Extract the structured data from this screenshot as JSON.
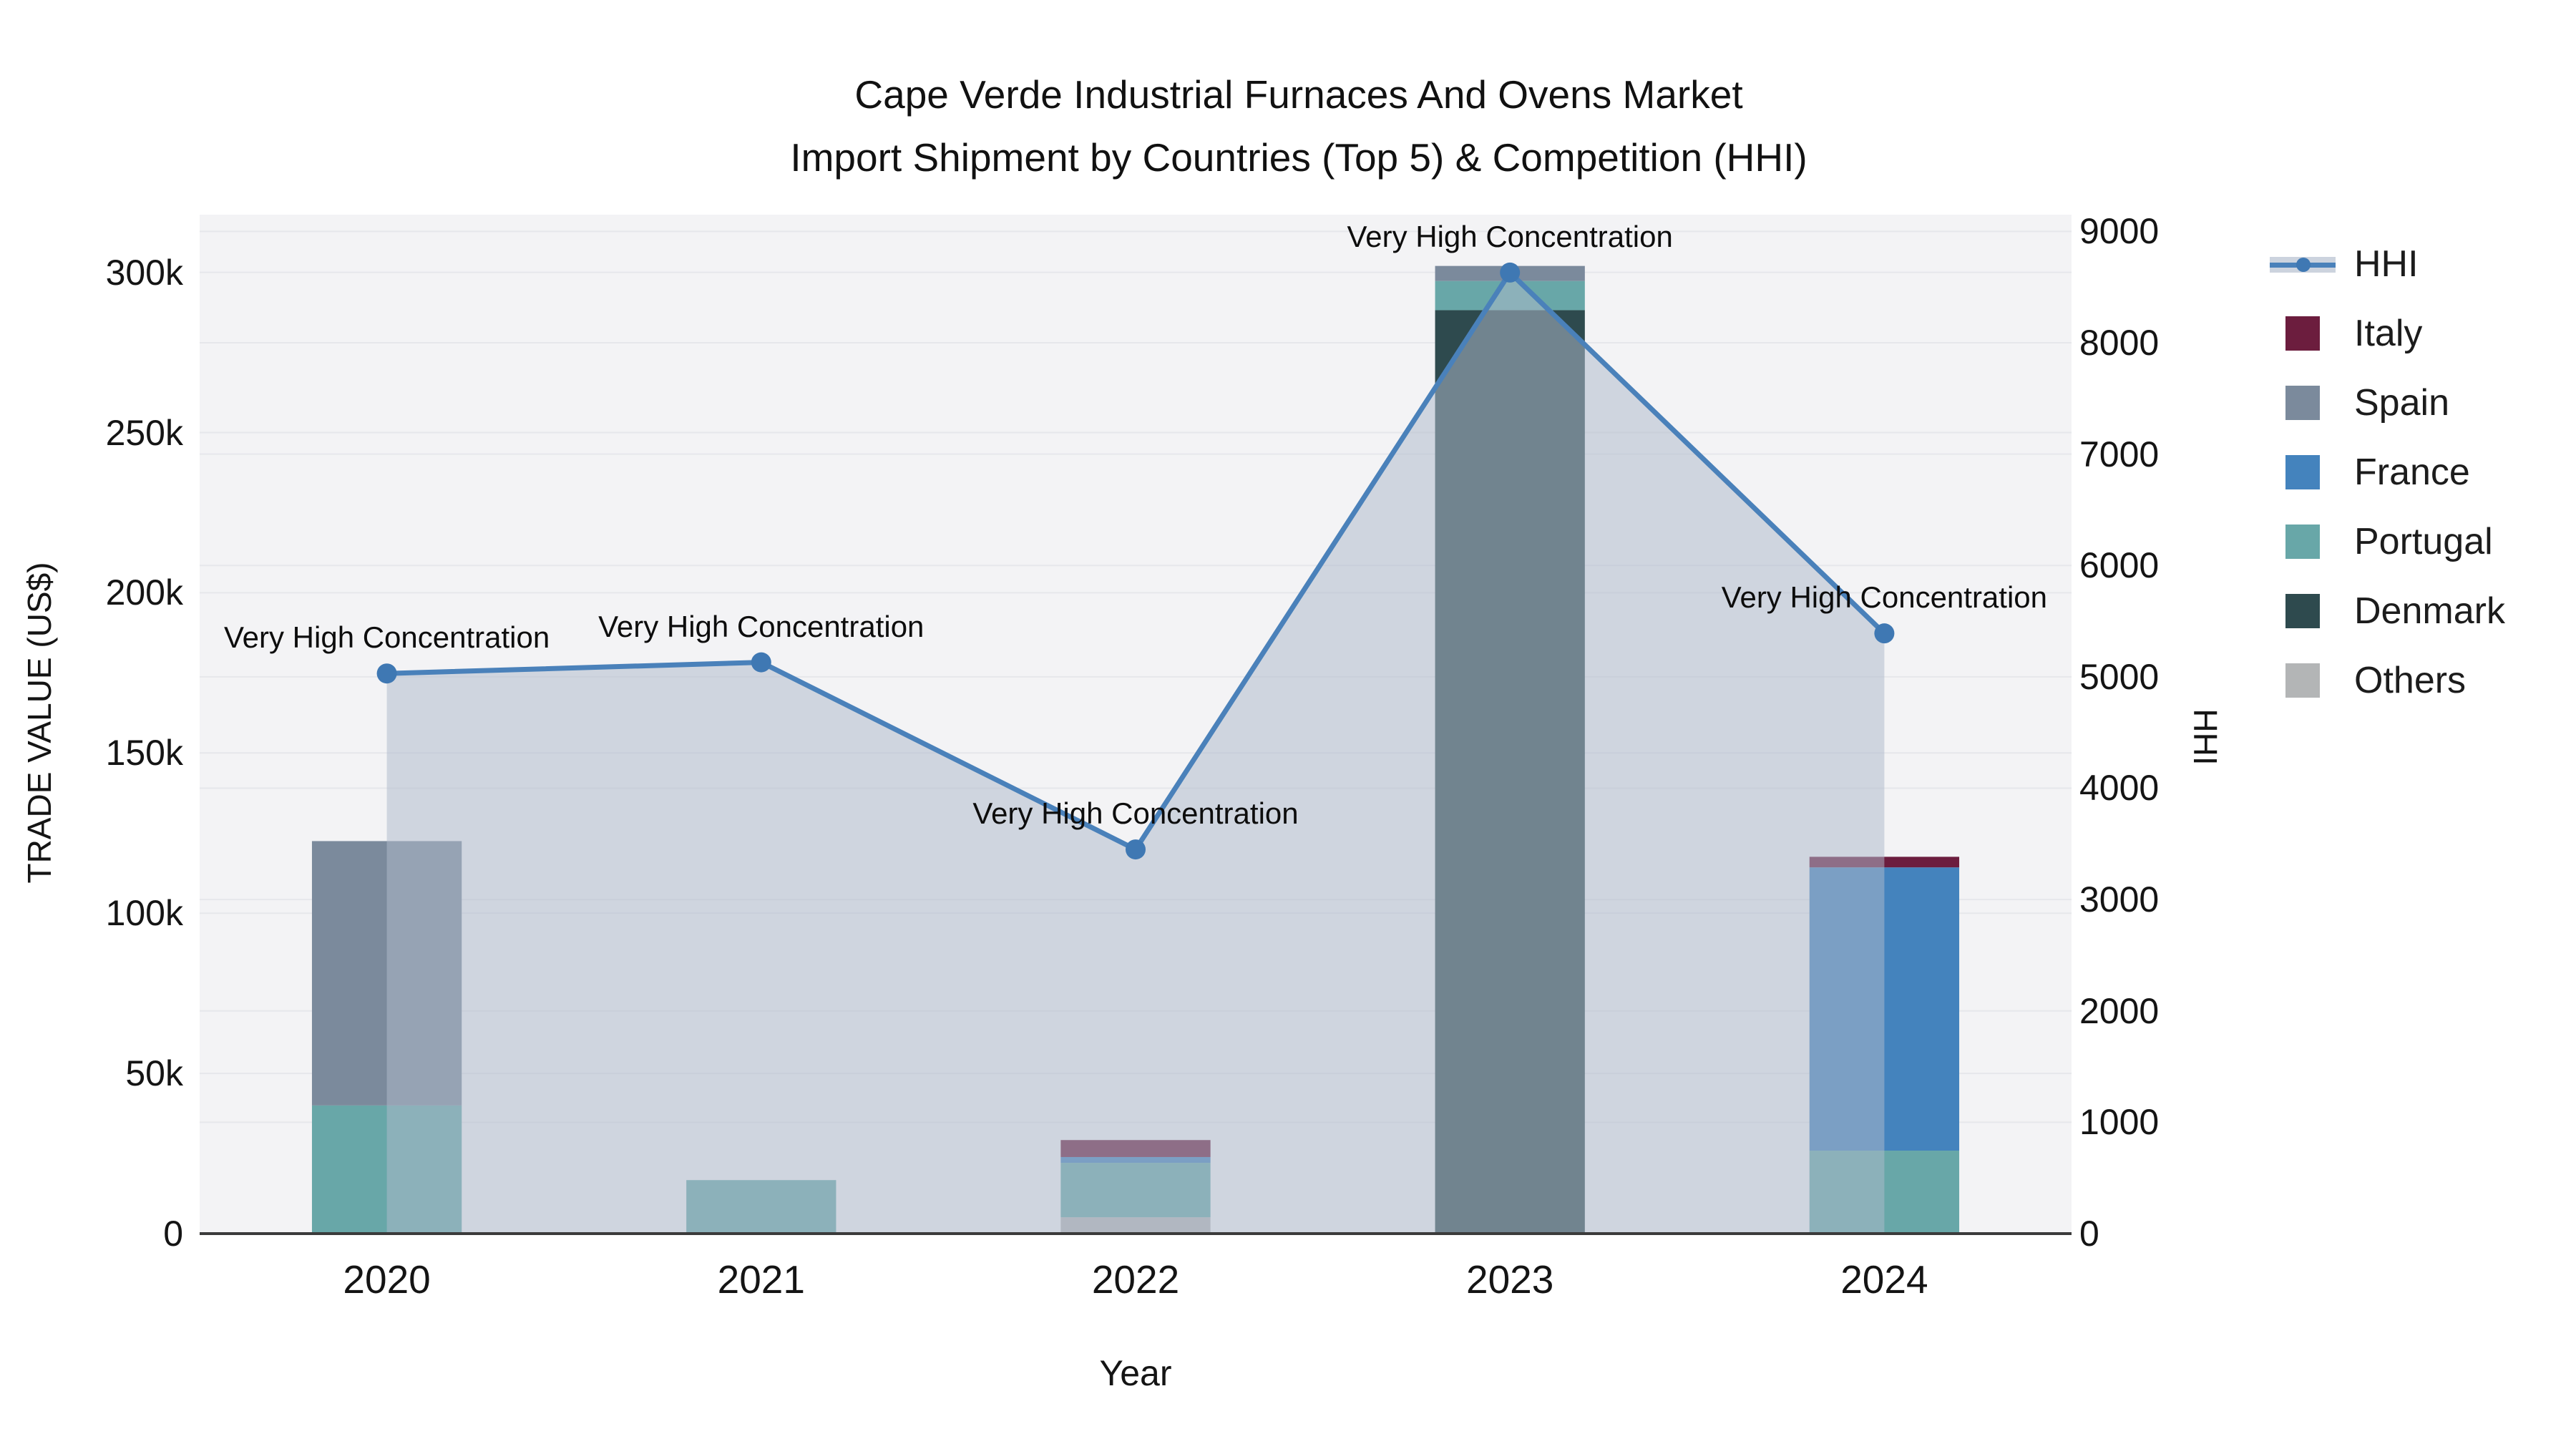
{
  "title": {
    "line1": "Cape Verde Industrial Furnaces And Ovens Market",
    "line2": "Import Shipment by Countries (Top 5) & Competition (HHI)"
  },
  "axes": {
    "x_title": "Year",
    "y_left_title": "TRADE VALUE (US$)",
    "y_right_title": "HHI",
    "y_left_ticks": [
      {
        "label": "0",
        "value": 0
      },
      {
        "label": "50k",
        "value": 50000
      },
      {
        "label": "100k",
        "value": 100000
      },
      {
        "label": "150k",
        "value": 150000
      },
      {
        "label": "200k",
        "value": 200000
      },
      {
        "label": "250k",
        "value": 250000
      },
      {
        "label": "300k",
        "value": 300000
      }
    ],
    "y_left_range": [
      0,
      318000
    ],
    "y_right_ticks": [
      {
        "label": "0",
        "value": 0
      },
      {
        "label": "1000",
        "value": 1000
      },
      {
        "label": "2000",
        "value": 2000
      },
      {
        "label": "3000",
        "value": 3000
      },
      {
        "label": "4000",
        "value": 4000
      },
      {
        "label": "5000",
        "value": 5000
      },
      {
        "label": "6000",
        "value": 6000
      },
      {
        "label": "7000",
        "value": 7000
      },
      {
        "label": "8000",
        "value": 8000
      },
      {
        "label": "9000",
        "value": 9000
      }
    ],
    "y_right_range": [
      0,
      9150
    ]
  },
  "chart_data": {
    "type": "combo: stacked-bar + line",
    "categories": [
      "2020",
      "2021",
      "2022",
      "2023",
      "2024"
    ],
    "bar_value_unit": "US$ trade value",
    "stack_order_bottom_to_top": [
      "Others",
      "Denmark",
      "Portugal",
      "France",
      "Spain",
      "Italy"
    ],
    "series": [
      {
        "name": "Others",
        "color": "#b3b5b6",
        "values": [
          0,
          0,
          5100,
          0,
          0
        ]
      },
      {
        "name": "Denmark",
        "color": "#2e4a4e",
        "values": [
          0,
          0,
          0,
          288200,
          0
        ]
      },
      {
        "name": "Portugal",
        "color": "#68a7a8",
        "values": [
          40000,
          16700,
          17000,
          9100,
          25900
        ]
      },
      {
        "name": "France",
        "color": "#4483bd",
        "values": [
          0,
          0,
          1800,
          0,
          88400
        ]
      },
      {
        "name": "Spain",
        "color": "#7b8a9c",
        "values": [
          82500,
          0,
          0,
          4700,
          0
        ]
      },
      {
        "name": "Italy",
        "color": "#6c1d3e",
        "values": [
          0,
          0,
          5300,
          0,
          3300
        ]
      }
    ],
    "bar_totals": [
      122500,
      16700,
      29200,
      302000,
      117600
    ],
    "line_series": {
      "name": "HHI",
      "axis": "right",
      "color": "#4a81ba",
      "marker_color": "#3f78b3",
      "area_fill_color": "rgba(174,186,203,0.52)",
      "values": [
        5030,
        5130,
        3450,
        8630,
        5390
      ]
    },
    "annotations": [
      {
        "text": "Very High Concentration",
        "category": "2020"
      },
      {
        "text": "Very High Concentration",
        "category": "2021"
      },
      {
        "text": "Very High Concentration",
        "category": "2022"
      },
      {
        "text": "Very High Concentration",
        "category": "2023"
      },
      {
        "text": "Very High Concentration",
        "category": "2024"
      }
    ],
    "legend": [
      {
        "label": "HHI",
        "type": "line-marker",
        "color": "#4a81ba"
      },
      {
        "label": "Italy",
        "type": "swatch",
        "color": "#6c1d3e"
      },
      {
        "label": "Spain",
        "type": "swatch",
        "color": "#7b8a9c"
      },
      {
        "label": "France",
        "type": "swatch",
        "color": "#4483bd"
      },
      {
        "label": "Portugal",
        "type": "swatch",
        "color": "#68a7a8"
      },
      {
        "label": "Denmark",
        "type": "swatch",
        "color": "#2e4a4e"
      },
      {
        "label": "Others",
        "type": "swatch",
        "color": "#b3b5b6"
      }
    ],
    "layout_hints": {
      "plot_background": "#f3f3f5",
      "gridlines": "both axes, light gray",
      "legend_position": "right",
      "bar_width_fraction_of_slot": 0.4
    }
  }
}
